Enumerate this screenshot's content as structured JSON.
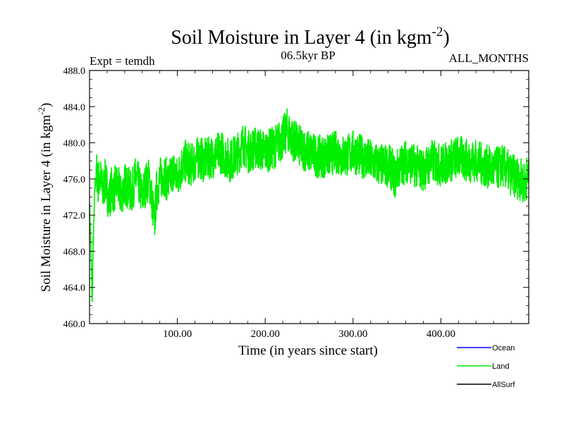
{
  "chart_data": {
    "type": "line",
    "title": "Soil Moisture in Layer 4 (in kgm",
    "title_superscript": "-2",
    "title_close": ")",
    "subtitle_left": "Expt = temdh",
    "subtitle_center": "06.5kyr BP",
    "subtitle_right": "ALL_MONTHS",
    "xlabel": "Time (in years since start)",
    "ylabel": "Soil Moisture in Layer 4 (in kgm",
    "ylabel_superscript": "-2",
    "ylabel_close": ")",
    "xlim": [
      0,
      500
    ],
    "ylim": [
      460.0,
      488.0
    ],
    "xticks": [
      100,
      200,
      300,
      400
    ],
    "xtick_labels": [
      "100.00",
      "200.00",
      "300.00",
      "400.00"
    ],
    "yticks": [
      460,
      464,
      468,
      472,
      476,
      480,
      484,
      488
    ],
    "ytick_labels": [
      "460.0",
      "464.0",
      "468.0",
      "472.0",
      "476.0",
      "480.0",
      "484.0",
      "488.0"
    ],
    "legend_placement": "bottom-right, outside plot",
    "series": [
      {
        "name": "Ocean",
        "color": "#0000ff",
        "x": [],
        "values": []
      },
      {
        "name": "Land",
        "color": "#00ee00",
        "x": [
          0,
          1,
          2,
          3,
          4,
          5,
          6,
          8,
          10,
          12,
          15,
          18,
          20,
          22,
          25,
          28,
          30,
          33,
          36,
          40,
          44,
          48,
          52,
          56,
          60,
          64,
          68,
          72,
          74,
          76,
          80,
          85,
          90,
          95,
          100,
          105,
          110,
          115,
          120,
          125,
          130,
          140,
          150,
          160,
          170,
          175,
          180,
          190,
          200,
          210,
          215,
          220,
          225,
          230,
          240,
          250,
          260,
          270,
          280,
          290,
          300,
          310,
          320,
          330,
          340,
          345,
          348,
          350,
          355,
          360,
          370,
          380,
          390,
          400,
          410,
          420,
          430,
          440,
          450,
          460,
          470,
          480,
          490,
          495,
          499
        ],
        "values": [
          473.0,
          470.0,
          466.5,
          462.0,
          468.5,
          471.0,
          475.0,
          477.0,
          475.5,
          476.5,
          474.5,
          476.0,
          475.0,
          473.5,
          475.0,
          474.5,
          475.5,
          475.0,
          474.0,
          475.5,
          475.0,
          474.5,
          476.0,
          475.5,
          474.0,
          475.5,
          476.0,
          473.0,
          471.0,
          474.5,
          476.0,
          476.5,
          475.5,
          477.0,
          476.0,
          477.5,
          478.0,
          477.5,
          478.0,
          478.5,
          478.0,
          478.5,
          479.0,
          478.0,
          479.0,
          480.0,
          479.0,
          479.5,
          479.0,
          479.5,
          480.0,
          480.5,
          481.5,
          480.5,
          479.5,
          479.0,
          478.5,
          478.5,
          479.0,
          478.5,
          479.0,
          478.5,
          478.0,
          477.5,
          477.5,
          477.0,
          476.0,
          477.0,
          477.5,
          478.0,
          477.5,
          477.0,
          478.0,
          477.5,
          478.0,
          478.5,
          478.0,
          478.0,
          477.5,
          477.0,
          477.5,
          476.5,
          476.0,
          475.5,
          476.5
        ]
      },
      {
        "name": "AllSurf",
        "color": "#000000",
        "x": [],
        "values": []
      }
    ],
    "grid": false
  }
}
